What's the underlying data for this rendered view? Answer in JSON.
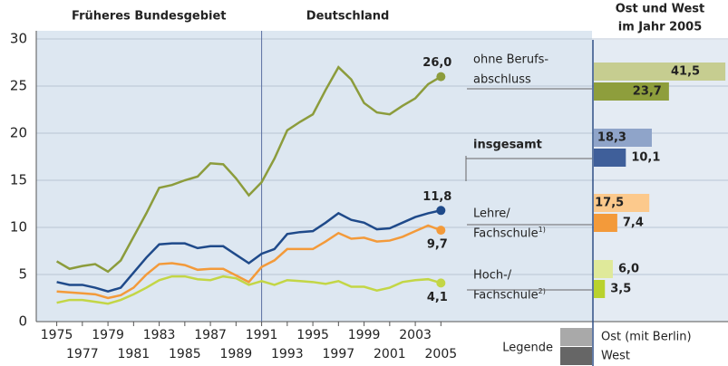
{
  "chart_data": [
    {
      "type": "line",
      "headers": [
        "Früheres Bundesgebiet",
        "Deutschland"
      ],
      "divider": 1991,
      "x": [
        1975,
        1976,
        1977,
        1978,
        1979,
        1980,
        1981,
        1982,
        1983,
        1984,
        1985,
        1986,
        1987,
        1988,
        1989,
        1990,
        1991,
        1992,
        1993,
        1994,
        1995,
        1996,
        1997,
        1998,
        1999,
        2000,
        2001,
        2002,
        2003,
        2004,
        2005
      ],
      "xlim": [
        1973.4,
        2016.8
      ],
      "xticks": [
        1975,
        1977,
        1979,
        1981,
        1983,
        1985,
        1987,
        1989,
        1991,
        1993,
        1995,
        1997,
        1999,
        2001,
        2003,
        2005
      ],
      "ylim": [
        0,
        30
      ],
      "yticks": [
        0,
        5,
        10,
        15,
        20,
        25,
        30
      ],
      "grid": true,
      "series": [
        {
          "name": "ohne Berufsabschluss",
          "color": "#8c9c3c",
          "end_label": "26,0",
          "values": [
            6.4,
            5.6,
            5.9,
            6.1,
            5.3,
            6.5,
            9.0,
            11.5,
            14.2,
            14.5,
            15.0,
            15.4,
            16.8,
            16.7,
            15.2,
            13.4,
            14.8,
            17.3,
            20.3,
            21.2,
            22.0,
            24.6,
            27.0,
            25.7,
            23.2,
            22.2,
            22.0,
            22.9,
            23.7,
            25.2,
            26.0
          ]
        },
        {
          "name": "insgesamt",
          "color": "#1f4a8a",
          "end_label": "11,8",
          "values": [
            4.2,
            3.9,
            3.9,
            3.6,
            3.2,
            3.6,
            5.2,
            6.8,
            8.2,
            8.3,
            8.3,
            7.8,
            8.0,
            8.0,
            7.1,
            6.2,
            7.2,
            7.7,
            9.3,
            9.5,
            9.6,
            10.5,
            11.5,
            10.8,
            10.5,
            9.8,
            9.9,
            10.5,
            11.1,
            11.5,
            11.8
          ]
        },
        {
          "name": "Lehre/Fachschule",
          "color": "#f39a3a",
          "end_label": "9,7",
          "values": [
            3.2,
            3.1,
            3.0,
            2.9,
            2.5,
            2.8,
            3.6,
            5.0,
            6.1,
            6.2,
            6.0,
            5.5,
            5.6,
            5.6,
            4.9,
            4.2,
            5.8,
            6.5,
            7.7,
            7.7,
            7.7,
            8.5,
            9.4,
            8.8,
            8.9,
            8.5,
            8.6,
            9.0,
            9.6,
            10.2,
            9.7
          ]
        },
        {
          "name": "Hoch-/Fachschule",
          "color": "#c3d646",
          "end_label": "4,1",
          "values": [
            2.0,
            2.3,
            2.3,
            2.1,
            1.9,
            2.3,
            2.9,
            3.6,
            4.4,
            4.8,
            4.8,
            4.5,
            4.4,
            4.8,
            4.6,
            3.9,
            4.3,
            3.9,
            4.4,
            4.3,
            4.2,
            4.0,
            4.3,
            3.7,
            3.7,
            3.3,
            3.6,
            4.2,
            4.4,
            4.5,
            4.1
          ]
        }
      ]
    },
    {
      "type": "bar",
      "title_lines": [
        "Ost und West",
        "im Jahr 2005"
      ],
      "categories": [
        [
          "ohne Berufs-",
          "abschluss"
        ],
        [
          "insgesamt"
        ],
        [
          "Lehre/",
          "Fachschule"
        ],
        [
          "Hoch-/",
          "Fachschule"
        ]
      ],
      "footnotes": [
        null,
        null,
        "1)",
        "2)"
      ],
      "xlim": [
        0,
        42.9
      ],
      "legend_title": "Legende",
      "series": [
        {
          "name": "Ost (mit Berlin)",
          "color": "#a9a9a9",
          "colors": [
            "#c6cd90",
            "#8fa4c9",
            "#fcc98c",
            "#dfe99a"
          ],
          "values": [
            41.5,
            18.3,
            17.5,
            6.0
          ],
          "value_labels": [
            "41,5",
            "18,3",
            "17,5",
            "6,0"
          ]
        },
        {
          "name": "West",
          "color": "#666666",
          "colors": [
            "#8e9e3c",
            "#3f5f9a",
            "#f39a3a",
            "#b9d22e"
          ],
          "values": [
            23.7,
            10.1,
            7.4,
            3.5
          ],
          "value_labels": [
            "23,7",
            "10,1",
            "7,4",
            "3,5"
          ]
        }
      ]
    }
  ]
}
